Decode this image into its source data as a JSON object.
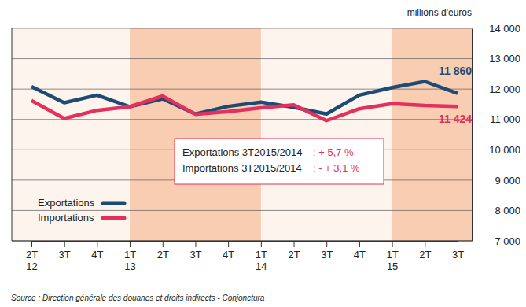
{
  "chart_data": {
    "type": "line",
    "y_label": "millions d'euros",
    "source": "Source : Direction générale des douanes et droits indirects - Conjonctura",
    "categories": [
      "2T\n12",
      "3T",
      "4T",
      "1T\n13",
      "2T",
      "3T",
      "4T",
      "1T\n14",
      "2T",
      "3T",
      "4T",
      "1T\n15",
      "2T",
      "3T"
    ],
    "series": [
      {
        "name": "Exportations",
        "color": "#1d4b73",
        "values": [
          12080,
          11550,
          11800,
          11420,
          11680,
          11180,
          11430,
          11570,
          11400,
          11180,
          11800,
          12050,
          12250,
          11860
        ],
        "value_labels": [
          null,
          null,
          null,
          null,
          null,
          null,
          null,
          null,
          null,
          null,
          null,
          null,
          null,
          "11 860"
        ]
      },
      {
        "name": "Importations",
        "color": "#e3305c",
        "values": [
          11620,
          11030,
          11300,
          11420,
          11770,
          11170,
          11260,
          11380,
          11480,
          10960,
          11350,
          11520,
          11460,
          11424
        ],
        "value_labels": [
          null,
          null,
          null,
          null,
          null,
          null,
          null,
          null,
          null,
          null,
          null,
          null,
          null,
          "11 424"
        ]
      }
    ],
    "ylim": [
      7000,
      14000
    ],
    "yticks": [
      {
        "value": 7000,
        "label": "7 000"
      },
      {
        "value": 8000,
        "label": "8 000"
      },
      {
        "value": 9000,
        "label": "9 000"
      },
      {
        "value": 10000,
        "label": "10 000"
      },
      {
        "value": 11000,
        "label": "11 000"
      },
      {
        "value": 12000,
        "label": "12 000"
      },
      {
        "value": 13000,
        "label": "13 000"
      },
      {
        "value": 14000,
        "label": "14 000"
      }
    ],
    "grid": true,
    "legend": "lower left",
    "annotations": [
      {
        "label": "Exportations 3T2015/2014",
        "value": ": + 5,7 %"
      },
      {
        "label": "Importations 3T2015/2014",
        "value": ": - + 3,1 %"
      }
    ]
  }
}
